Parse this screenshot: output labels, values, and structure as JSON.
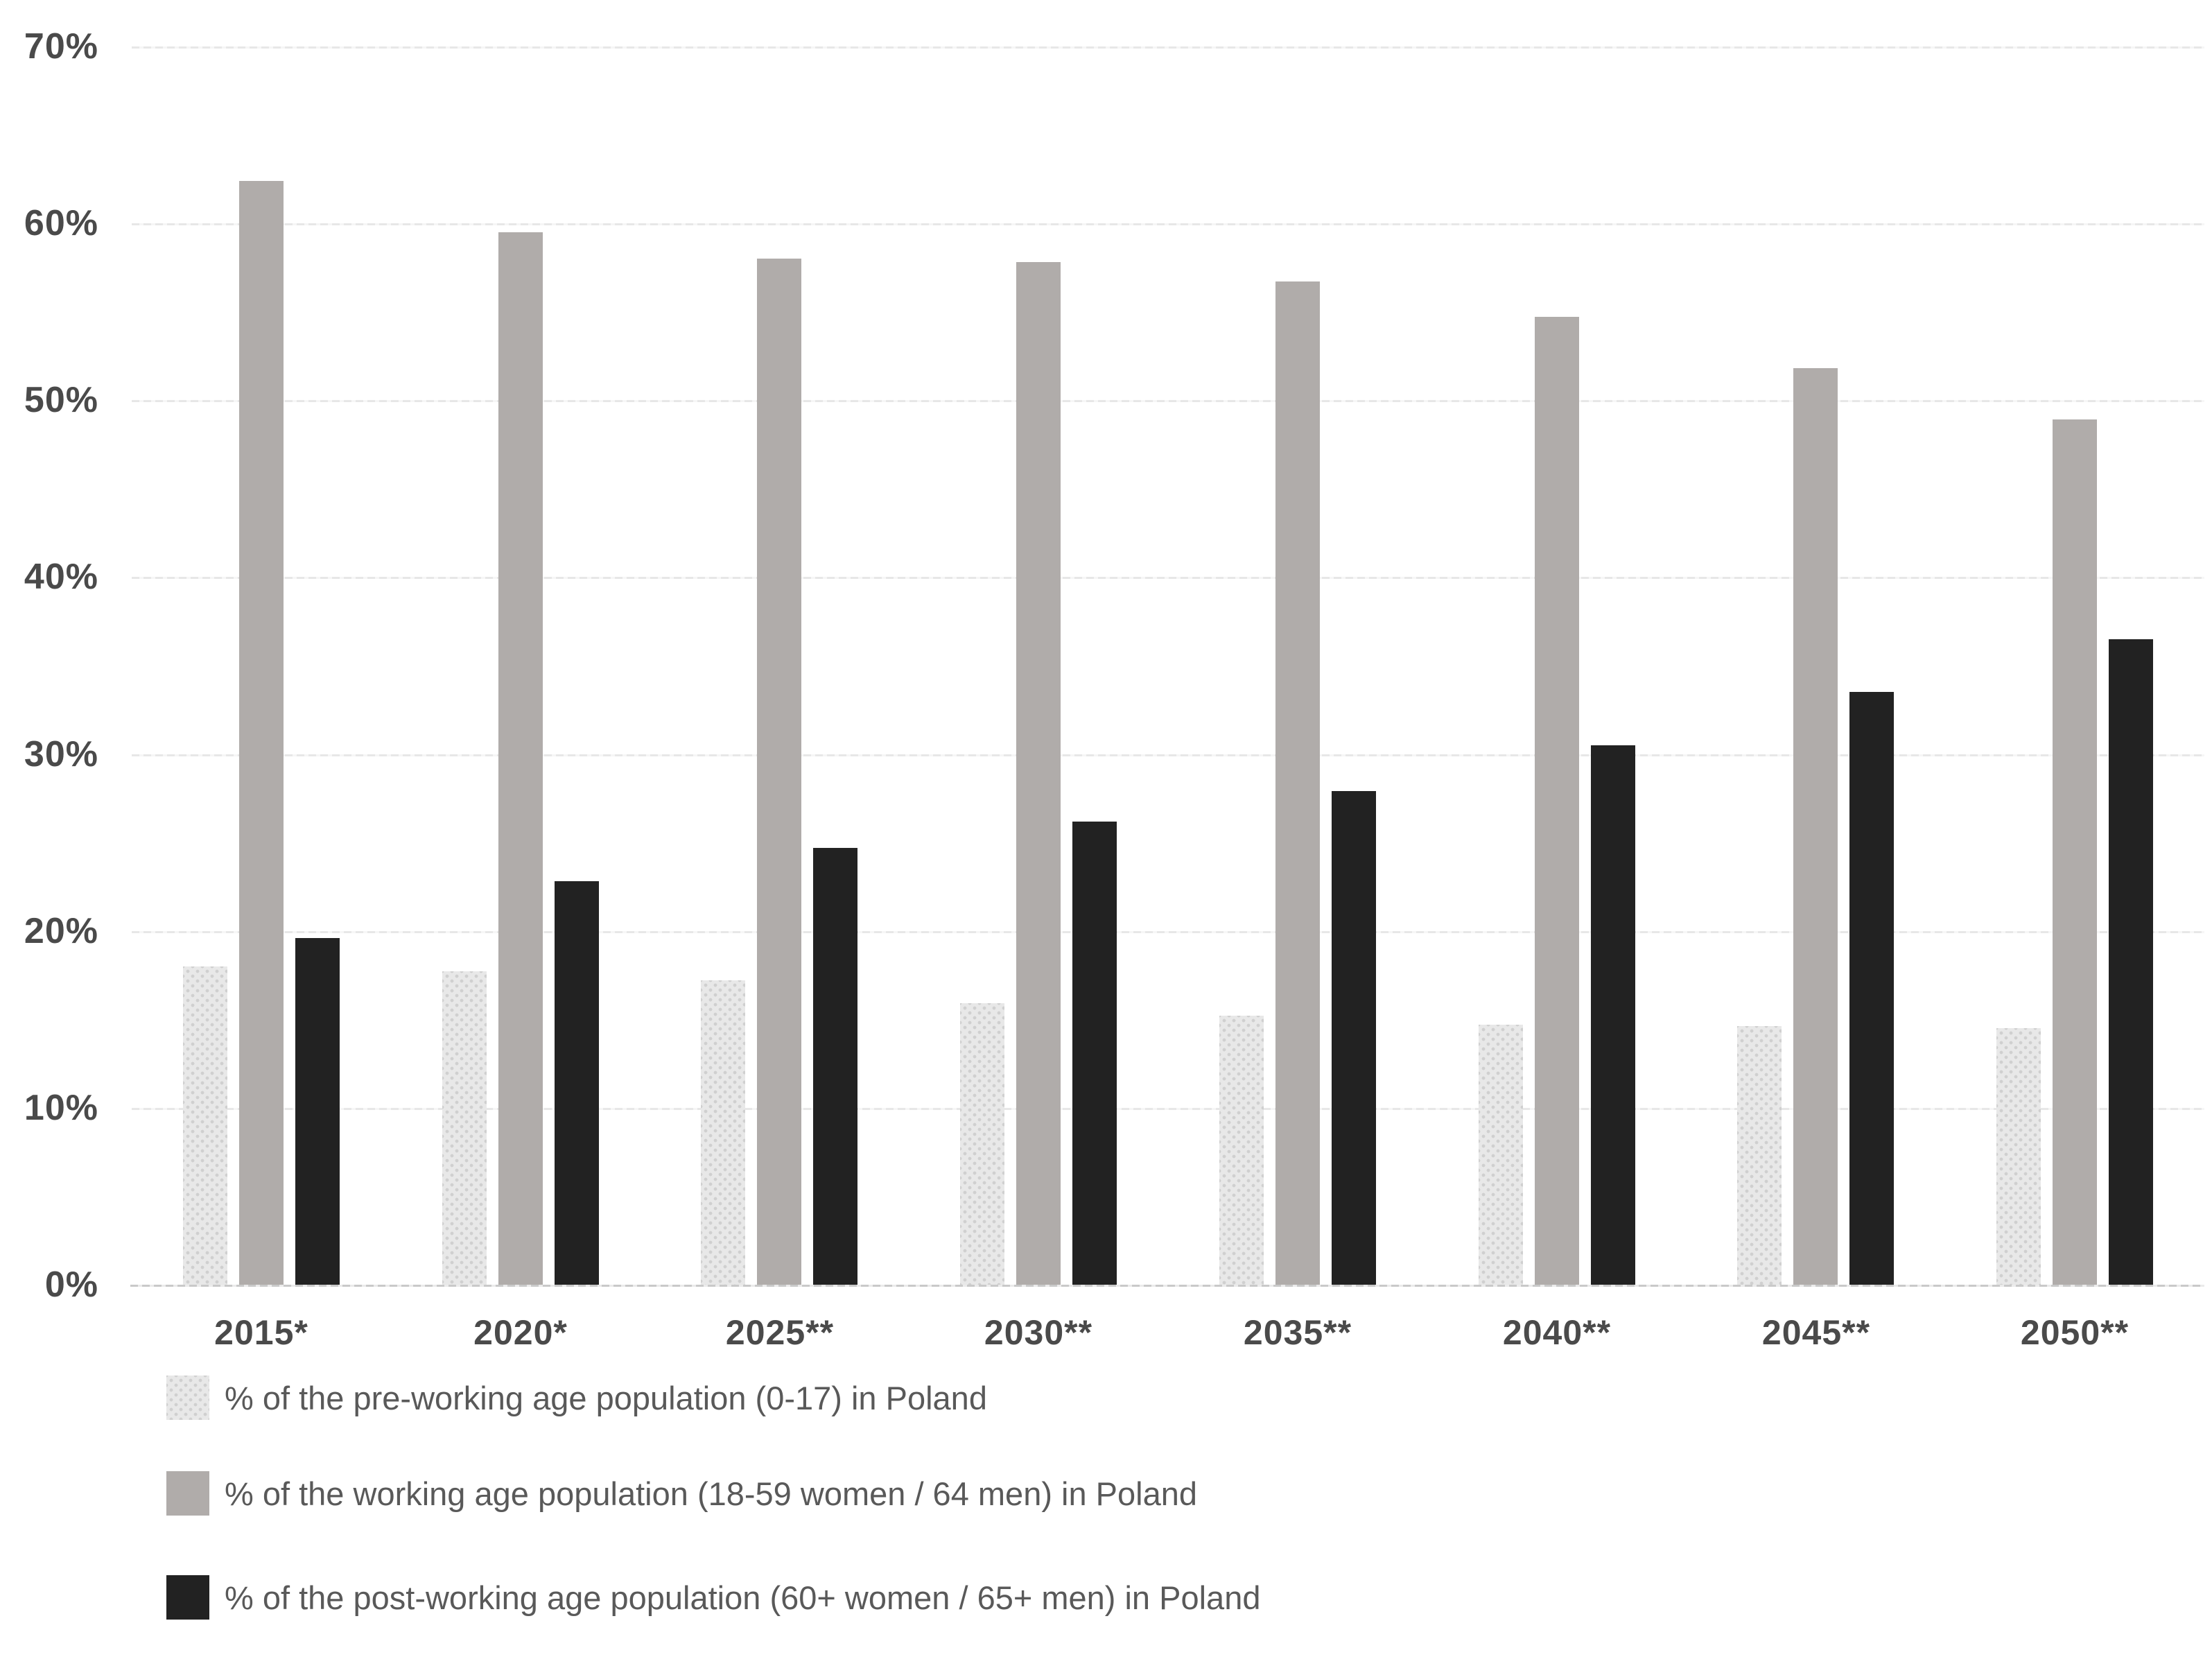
{
  "chart_data": {
    "type": "bar",
    "grouped": true,
    "title": "",
    "xlabel": "",
    "ylabel": "",
    "ylim": [
      0,
      70
    ],
    "ytick_step": 10,
    "ytick_labels": [
      "0%",
      "10%",
      "20%",
      "30%",
      "40%",
      "50%",
      "60%",
      "70%"
    ],
    "grid": "horizontal",
    "legend_position": "bottom-left",
    "categories": [
      "2015*",
      "2020*",
      "2025**",
      "2030**",
      "2035**",
      "2040**",
      "2045**",
      "2050**"
    ],
    "series": [
      {
        "key": "pre-working",
        "name": "% of the pre-working age population (0-17) in Poland",
        "color": "#e8e8e8",
        "dot_color": "#d0d0d0",
        "pattern": "dots",
        "values": [
          18.0,
          17.7,
          17.2,
          15.9,
          15.2,
          14.7,
          14.6,
          14.5
        ]
      },
      {
        "key": "working",
        "name": "% of the working age population (18-59 women / 64 men) in Poland",
        "color": "#b0acaa",
        "pattern": "solid",
        "values": [
          62.4,
          59.5,
          58.0,
          57.8,
          56.7,
          54.7,
          51.8,
          48.9
        ]
      },
      {
        "key": "post-working",
        "name": "% of the post-working age population (60+ women / 65+ men) in Poland",
        "color": "#222222",
        "pattern": "solid",
        "values": [
          19.6,
          22.8,
          24.7,
          26.2,
          27.9,
          30.5,
          33.5,
          36.5
        ]
      }
    ],
    "colors": {
      "background": "#ffffff",
      "axis_text": "#4a4a4a",
      "legend_text": "#595959",
      "gridline": "#e7e7e7",
      "gridline_gap": "#f6f6f6",
      "axis_line": "#c9c9c9",
      "axis_line_gap": "#ebebeb"
    }
  }
}
